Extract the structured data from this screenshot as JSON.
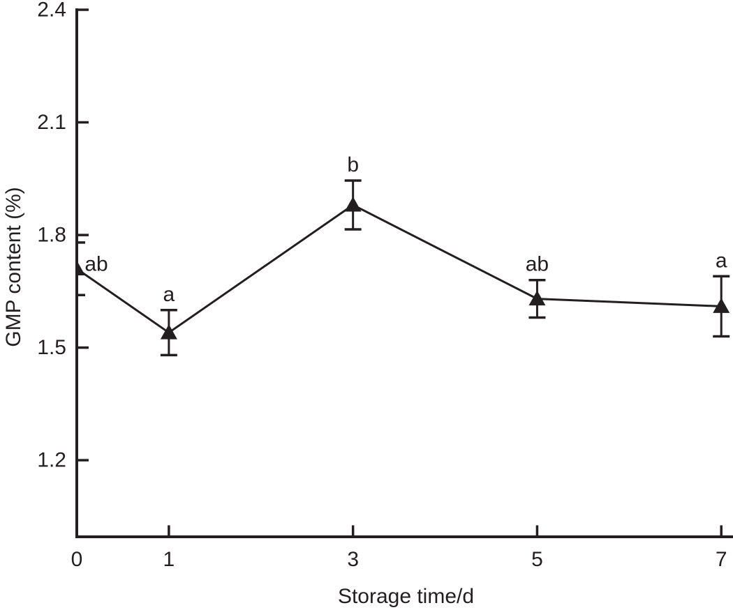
{
  "chart_data": {
    "type": "line",
    "title": "",
    "xlabel": "Storage time/d",
    "ylabel": "GMP content (%)",
    "x": [
      0,
      1,
      3,
      5,
      7
    ],
    "series": [
      {
        "name": "GMP content",
        "values": [
          1.71,
          1.54,
          1.88,
          1.63,
          1.61
        ],
        "errors": [
          0.07,
          0.06,
          0.065,
          0.05,
          0.08
        ],
        "point_labels": [
          "ab",
          "a",
          "b",
          "ab",
          "a"
        ],
        "marker": "filled-triangle-up",
        "color": "#231f20"
      }
    ],
    "x_ticks": [
      "0",
      "1",
      "3",
      "5",
      "7"
    ],
    "y_ticks": [
      "1.2",
      "1.5",
      "1.8",
      "2.1",
      "2.4"
    ],
    "x_tick_values": [
      0,
      1,
      3,
      5,
      7
    ],
    "y_tick_values": [
      1.2,
      1.5,
      1.8,
      2.1,
      2.4
    ],
    "xlim": [
      0,
      7.15
    ],
    "ylim": [
      0.996,
      2.4
    ],
    "grid": false,
    "legend": false,
    "background": "#ffffff",
    "axis_color": "#231f20",
    "errorbars": true
  }
}
